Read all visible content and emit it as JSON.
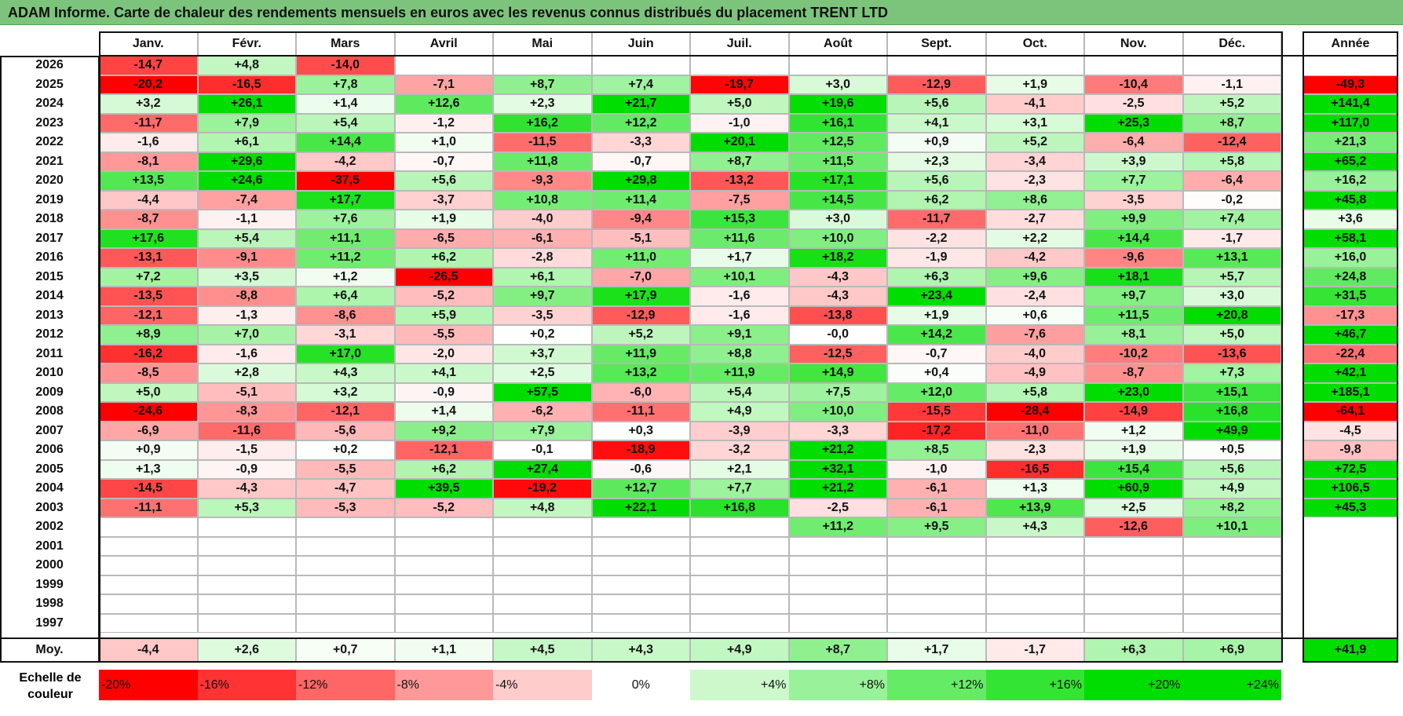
{
  "title": "ADAM Informe. Carte de chaleur des rendements mensuels en euros avec les revenus connus distribués du placement TRENT LTD",
  "months": [
    "Janv.",
    "Févr.",
    "Mars",
    "Avril",
    "Mai",
    "Juin",
    "Juil.",
    "Août",
    "Sept.",
    "Oct.",
    "Nov.",
    "Déc."
  ],
  "year_header": "Année",
  "avg_label": "Moy.",
  "scale_label": "Echelle de couleur",
  "scale": [
    "-20%",
    "-16%",
    "-12%",
    "-8%",
    "-4%",
    "0%",
    "+4%",
    "+8%",
    "+12%",
    "+16%",
    "+20%",
    "+24%"
  ],
  "colors": {
    "title_bar": "#7cc47c",
    "neg_max": "#ff0000",
    "pos_max": "#00dd00",
    "zero": "#ffffff"
  },
  "chart_data": {
    "type": "heatmap",
    "title": "ADAM Informe. Carte de chaleur des rendements mensuels en euros avec les revenus connus distribués du placement TRENT LTD",
    "x": [
      "Janv.",
      "Févr.",
      "Mars",
      "Avril",
      "Mai",
      "Juin",
      "Juil.",
      "Août",
      "Sept.",
      "Oct.",
      "Nov.",
      "Déc."
    ],
    "rows": [
      {
        "year": "2026",
        "values": [
          "-14,7",
          "+4,8",
          "-14,0",
          "",
          "",
          "",
          "",
          "",
          "",
          "",
          "",
          ""
        ],
        "annual": ""
      },
      {
        "year": "2025",
        "values": [
          "-20,2",
          "-16,5",
          "+7,8",
          "-7,1",
          "+8,7",
          "+7,4",
          "-19,7",
          "+3,0",
          "-12,9",
          "+1,9",
          "-10,4",
          "-1,1"
        ],
        "annual": "-49,3"
      },
      {
        "year": "2024",
        "values": [
          "+3,2",
          "+26,1",
          "+1,4",
          "+12,6",
          "+2,3",
          "+21,7",
          "+5,0",
          "+19,6",
          "+5,6",
          "-4,1",
          "-2,5",
          "+5,2"
        ],
        "annual": "+141,4"
      },
      {
        "year": "2023",
        "values": [
          "-11,7",
          "+7,9",
          "+5,4",
          "-1,2",
          "+16,2",
          "+12,2",
          "-1,0",
          "+16,1",
          "+4,1",
          "+3,1",
          "+25,3",
          "+8,7"
        ],
        "annual": "+117,0"
      },
      {
        "year": "2022",
        "values": [
          "-1,6",
          "+6,1",
          "+14,4",
          "+1,0",
          "-11,5",
          "-3,3",
          "+20,1",
          "+12,5",
          "+0,9",
          "+5,2",
          "-6,4",
          "-12,4"
        ],
        "annual": "+21,3"
      },
      {
        "year": "2021",
        "values": [
          "-8,1",
          "+29,6",
          "-4,2",
          "-0,7",
          "+11,8",
          "-0,7",
          "+8,7",
          "+11,5",
          "+2,3",
          "-3,4",
          "+3,9",
          "+5,8"
        ],
        "annual": "+65,2"
      },
      {
        "year": "2020",
        "values": [
          "+13,5",
          "+24,6",
          "-37,5",
          "+5,6",
          "-9,3",
          "+29,8",
          "-13,2",
          "+17,1",
          "+5,6",
          "-2,3",
          "+7,7",
          "-6,4"
        ],
        "annual": "+16,2"
      },
      {
        "year": "2019",
        "values": [
          "-4,4",
          "-7,4",
          "+17,7",
          "-3,7",
          "+10,8",
          "+11,4",
          "-7,5",
          "+14,5",
          "+6,2",
          "+8,6",
          "-3,5",
          "-0,2"
        ],
        "annual": "+45,8"
      },
      {
        "year": "2018",
        "values": [
          "-8,7",
          "-1,1",
          "+7,6",
          "+1,9",
          "-4,0",
          "-9,4",
          "+15,3",
          "+3,0",
          "-11,7",
          "-2,7",
          "+9,9",
          "+7,4"
        ],
        "annual": "+3,6"
      },
      {
        "year": "2017",
        "values": [
          "+17,6",
          "+5,4",
          "+11,1",
          "-6,5",
          "-6,1",
          "-5,1",
          "+11,6",
          "+10,0",
          "-2,2",
          "+2,2",
          "+14,4",
          "-1,7"
        ],
        "annual": "+58,1"
      },
      {
        "year": "2016",
        "values": [
          "-13,1",
          "-9,1",
          "+11,2",
          "+6,2",
          "-2,8",
          "+11,0",
          "+1,7",
          "+18,2",
          "-1,9",
          "-4,2",
          "-9,6",
          "+13,1"
        ],
        "annual": "+16,0"
      },
      {
        "year": "2015",
        "values": [
          "+7,2",
          "+3,5",
          "+1,2",
          "-26,5",
          "+6,1",
          "-7,0",
          "+10,1",
          "-4,3",
          "+6,3",
          "+9,6",
          "+18,1",
          "+5,7"
        ],
        "annual": "+24,8"
      },
      {
        "year": "2014",
        "values": [
          "-13,5",
          "-8,8",
          "+6,4",
          "-5,2",
          "+9,7",
          "+17,9",
          "-1,6",
          "-4,3",
          "+23,4",
          "-2,4",
          "+9,7",
          "+3,0"
        ],
        "annual": "+31,5"
      },
      {
        "year": "2013",
        "values": [
          "-12,1",
          "-1,3",
          "-8,6",
          "+5,9",
          "-3,5",
          "-12,9",
          "-1,6",
          "-13,8",
          "+1,9",
          "+0,6",
          "+11,5",
          "+20,8"
        ],
        "annual": "-17,3"
      },
      {
        "year": "2012",
        "values": [
          "+8,9",
          "+7,0",
          "-3,1",
          "-5,5",
          "+0,2",
          "+5,2",
          "+9,1",
          "-0,0",
          "+14,2",
          "-7,6",
          "+8,1",
          "+5,0"
        ],
        "annual": "+46,7"
      },
      {
        "year": "2011",
        "values": [
          "-16,2",
          "-1,6",
          "+17,0",
          "-2,0",
          "+3,7",
          "+11,9",
          "+8,8",
          "-12,5",
          "-0,7",
          "-4,0",
          "-10,2",
          "-13,6"
        ],
        "annual": "-22,4"
      },
      {
        "year": "2010",
        "values": [
          "-8,5",
          "+2,8",
          "+4,3",
          "+4,1",
          "+2,5",
          "+13,2",
          "+11,9",
          "+14,9",
          "+0,4",
          "-4,9",
          "-8,7",
          "+7,3"
        ],
        "annual": "+42,1"
      },
      {
        "year": "2009",
        "values": [
          "+5,0",
          "-5,1",
          "+3,2",
          "-0,9",
          "+57,5",
          "-6,0",
          "+5,4",
          "+7,5",
          "+12,0",
          "+5,8",
          "+23,0",
          "+15,1"
        ],
        "annual": "+185,1"
      },
      {
        "year": "2008",
        "values": [
          "-24,6",
          "-8,3",
          "-12,1",
          "+1,4",
          "-6,2",
          "-11,1",
          "+4,9",
          "+10,0",
          "-15,5",
          "-28,4",
          "-14,9",
          "+16,8"
        ],
        "annual": "-64,1"
      },
      {
        "year": "2007",
        "values": [
          "-6,9",
          "-11,6",
          "-5,6",
          "+9,2",
          "+7,9",
          "+0,3",
          "-3,9",
          "-3,3",
          "-17,2",
          "-11,0",
          "+1,2",
          "+49,9"
        ],
        "annual": "-4,5"
      },
      {
        "year": "2006",
        "values": [
          "+0,9",
          "-1,5",
          "+0,2",
          "-12,1",
          "-0,1",
          "-18,9",
          "-3,2",
          "+21,2",
          "+8,5",
          "-2,3",
          "+1,9",
          "+0,5"
        ],
        "annual": "-9,8"
      },
      {
        "year": "2005",
        "values": [
          "+1,3",
          "-0,9",
          "-5,5",
          "+6,2",
          "+27,4",
          "-0,6",
          "+2,1",
          "+32,1",
          "-1,0",
          "-16,5",
          "+15,4",
          "+5,6"
        ],
        "annual": "+72,5"
      },
      {
        "year": "2004",
        "values": [
          "-14,5",
          "-4,3",
          "-4,7",
          "+39,5",
          "-19,2",
          "+12,7",
          "+7,7",
          "+21,2",
          "-6,1",
          "+1,3",
          "+60,9",
          "+4,9"
        ],
        "annual": "+106,5"
      },
      {
        "year": "2003",
        "values": [
          "-11,1",
          "+5,3",
          "-5,3",
          "-5,2",
          "+4,8",
          "+22,1",
          "+16,8",
          "-2,5",
          "-6,1",
          "+13,9",
          "+2,5",
          "+8,2"
        ],
        "annual": "+45,3"
      },
      {
        "year": "2002",
        "values": [
          "",
          "",
          "",
          "",
          "",
          "",
          "",
          "+11,2",
          "+9,5",
          "+4,3",
          "-12,6",
          "+10,1"
        ],
        "annual": ""
      },
      {
        "year": "2001",
        "values": [
          "",
          "",
          "",
          "",
          "",
          "",
          "",
          "",
          "",
          "",
          "",
          ""
        ],
        "annual": ""
      },
      {
        "year": "2000",
        "values": [
          "",
          "",
          "",
          "",
          "",
          "",
          "",
          "",
          "",
          "",
          "",
          ""
        ],
        "annual": ""
      },
      {
        "year": "1999",
        "values": [
          "",
          "",
          "",
          "",
          "",
          "",
          "",
          "",
          "",
          "",
          "",
          ""
        ],
        "annual": ""
      },
      {
        "year": "1998",
        "values": [
          "",
          "",
          "",
          "",
          "",
          "",
          "",
          "",
          "",
          "",
          "",
          ""
        ],
        "annual": ""
      },
      {
        "year": "1997",
        "values": [
          "",
          "",
          "",
          "",
          "",
          "",
          "",
          "",
          "",
          "",
          "",
          ""
        ],
        "annual": ""
      }
    ],
    "averages": [
      "-4,4",
      "+2,6",
      "+0,7",
      "+1,1",
      "+4,5",
      "+4,3",
      "+4,9",
      "+8,7",
      "+1,7",
      "-1,7",
      "+6,3",
      "+6,9"
    ],
    "average_annual": "+41,9"
  }
}
